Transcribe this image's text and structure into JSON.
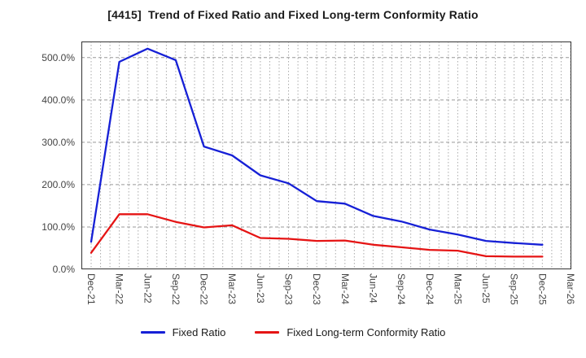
{
  "chart_data": {
    "type": "line",
    "title": "[4415]  Trend of Fixed Ratio and Fixed Long-term Conformity Ratio",
    "categories": [
      "Dec-21",
      "Mar-22",
      "Jun-22",
      "Sep-22",
      "Dec-22",
      "Mar-23",
      "Jun-23",
      "Sep-23",
      "Dec-23",
      "Mar-24",
      "Jun-24",
      "Sep-24",
      "Dec-24",
      "Mar-25",
      "Jun-25",
      "Sep-25",
      "Dec-25",
      "Mar-26"
    ],
    "series": [
      {
        "name": "Fixed Ratio",
        "color": "#1620d6",
        "values": [
          65,
          490,
          521,
          494,
          290,
          269,
          222,
          203,
          161,
          155,
          126,
          113,
          94,
          82,
          67,
          62,
          58,
          null
        ]
      },
      {
        "name": "Fixed Long-term Conformity Ratio",
        "color": "#e51414",
        "values": [
          39,
          130,
          130,
          112,
          99,
          104,
          74,
          72,
          67,
          68,
          58,
          52,
          46,
          44,
          31,
          30,
          30,
          null
        ]
      }
    ],
    "ylabel": "",
    "xlabel": "",
    "ylim": [
      0,
      538
    ],
    "yticks": [
      0,
      100,
      200,
      300,
      400,
      500
    ],
    "ytick_labels": [
      "0.0%",
      "100.0%",
      "200.0%",
      "300.0%",
      "400.0%",
      "500.0%"
    ],
    "grid": true,
    "legend_position": "bottom",
    "grid_color": "#aaaaaa",
    "frame_color": "#333333",
    "minor_x_divisions_per_category": 3
  }
}
